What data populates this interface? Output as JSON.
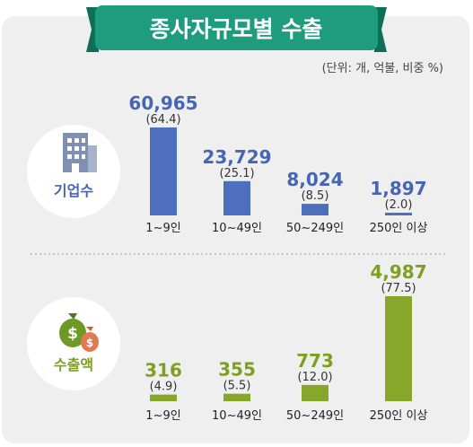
{
  "title": "종사자규모별 수출",
  "unit_note": "(단위: 개, 억불, 비중 %)",
  "colors": {
    "panel_bg": "#efefef",
    "title_bg": "#1f9c7e",
    "title_ribbon": "#0d6f58",
    "companies_bar": "#4e6fbd",
    "companies_text": "#4665b5",
    "exports_bar": "#86a72a",
    "exports_text": "#7f9f22",
    "divider": "#9a9a9a"
  },
  "chart_data": [
    {
      "type": "bar",
      "label": "기업수",
      "icon": "building-icon",
      "categories": [
        "1~9인",
        "10~49인",
        "50~249인",
        "250인 이상"
      ],
      "values": [
        60965,
        23729,
        8024,
        1897
      ],
      "value_labels": [
        "60,965",
        "23,729",
        "8,024",
        "1,897"
      ],
      "shares": [
        "(64.4)",
        "(25.1)",
        "(8.5)",
        "(2.0)"
      ],
      "share_values": [
        64.4,
        25.1,
        8.5,
        2.0
      ]
    },
    {
      "type": "bar",
      "label": "수출액",
      "icon": "money-bag-icon",
      "categories": [
        "1~9인",
        "10~49인",
        "50~249인",
        "250인 이상"
      ],
      "values": [
        316,
        355,
        773,
        4987
      ],
      "value_labels": [
        "316",
        "355",
        "773",
        "4,987"
      ],
      "shares": [
        "(4.9)",
        "(5.5)",
        "(12.0)",
        "(77.5)"
      ],
      "share_values": [
        4.9,
        5.5,
        12.0,
        77.5
      ]
    }
  ]
}
